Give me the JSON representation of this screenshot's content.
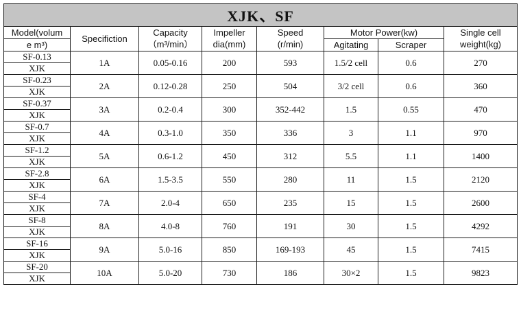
{
  "title": "XJK、SF",
  "headers": {
    "model_line1": "Model(volum",
    "model_line2": "e m³)",
    "specification": "Specifiction",
    "capacity_line1": "Capacity",
    "capacity_line2": "（m³/min）",
    "impeller_line1": "Impeller",
    "impeller_line2": "dia(mm)",
    "speed_line1": "Speed",
    "speed_line2": "(r/min)",
    "motor_power": "Motor Power(kw)",
    "agitating": "Agitating",
    "scraper": "Scraper",
    "weight_line1": "Single cell",
    "weight_line2": "weight(kg)"
  },
  "rows": [
    {
      "sf": "SF-0.13",
      "xjk": "XJK",
      "spec": "1A",
      "capacity": "0.05-0.16",
      "impeller": "200",
      "speed": "593",
      "agitating": "1.5/2 cell",
      "scraper": "0.6",
      "weight": "270"
    },
    {
      "sf": "SF-0.23",
      "xjk": "XJK",
      "spec": "2A",
      "capacity": "0.12-0.28",
      "impeller": "250",
      "speed": "504",
      "agitating": "3/2 cell",
      "scraper": "0.6",
      "weight": "360"
    },
    {
      "sf": "SF-0.37",
      "xjk": "XJK",
      "spec": "3A",
      "capacity": "0.2-0.4",
      "impeller": "300",
      "speed": "352-442",
      "agitating": "1.5",
      "scraper": "0.55",
      "weight": "470"
    },
    {
      "sf": "SF-0.7",
      "xjk": "XJK",
      "spec": "4A",
      "capacity": "0.3-1.0",
      "impeller": "350",
      "speed": "336",
      "agitating": "3",
      "scraper": "1.1",
      "weight": "970"
    },
    {
      "sf": "SF-1.2",
      "xjk": "XJK",
      "spec": "5A",
      "capacity": "0.6-1.2",
      "impeller": "450",
      "speed": "312",
      "agitating": "5.5",
      "scraper": "1.1",
      "weight": "1400"
    },
    {
      "sf": "SF-2.8",
      "xjk": "XJK",
      "spec": "6A",
      "capacity": "1.5-3.5",
      "impeller": "550",
      "speed": "280",
      "agitating": "11",
      "scraper": "1.5",
      "weight": "2120"
    },
    {
      "sf": "SF-4",
      "xjk": "XJK",
      "spec": "7A",
      "capacity": "2.0-4",
      "impeller": "650",
      "speed": "235",
      "agitating": "15",
      "scraper": "1.5",
      "weight": "2600"
    },
    {
      "sf": "SF-8",
      "xjk": "XJK",
      "spec": "8A",
      "capacity": "4.0-8",
      "impeller": "760",
      "speed": "191",
      "agitating": "30",
      "scraper": "1.5",
      "weight": "4292"
    },
    {
      "sf": "SF-16",
      "xjk": "XJK",
      "spec": "9A",
      "capacity": "5.0-16",
      "impeller": "850",
      "speed": "169-193",
      "agitating": "45",
      "scraper": "1.5",
      "weight": "7415"
    },
    {
      "sf": "SF-20",
      "xjk": "XJK",
      "spec": "10A",
      "capacity": "5.0-20",
      "impeller": "730",
      "speed": "186",
      "agitating": "30×2",
      "scraper": "1.5",
      "weight": "9823"
    }
  ]
}
